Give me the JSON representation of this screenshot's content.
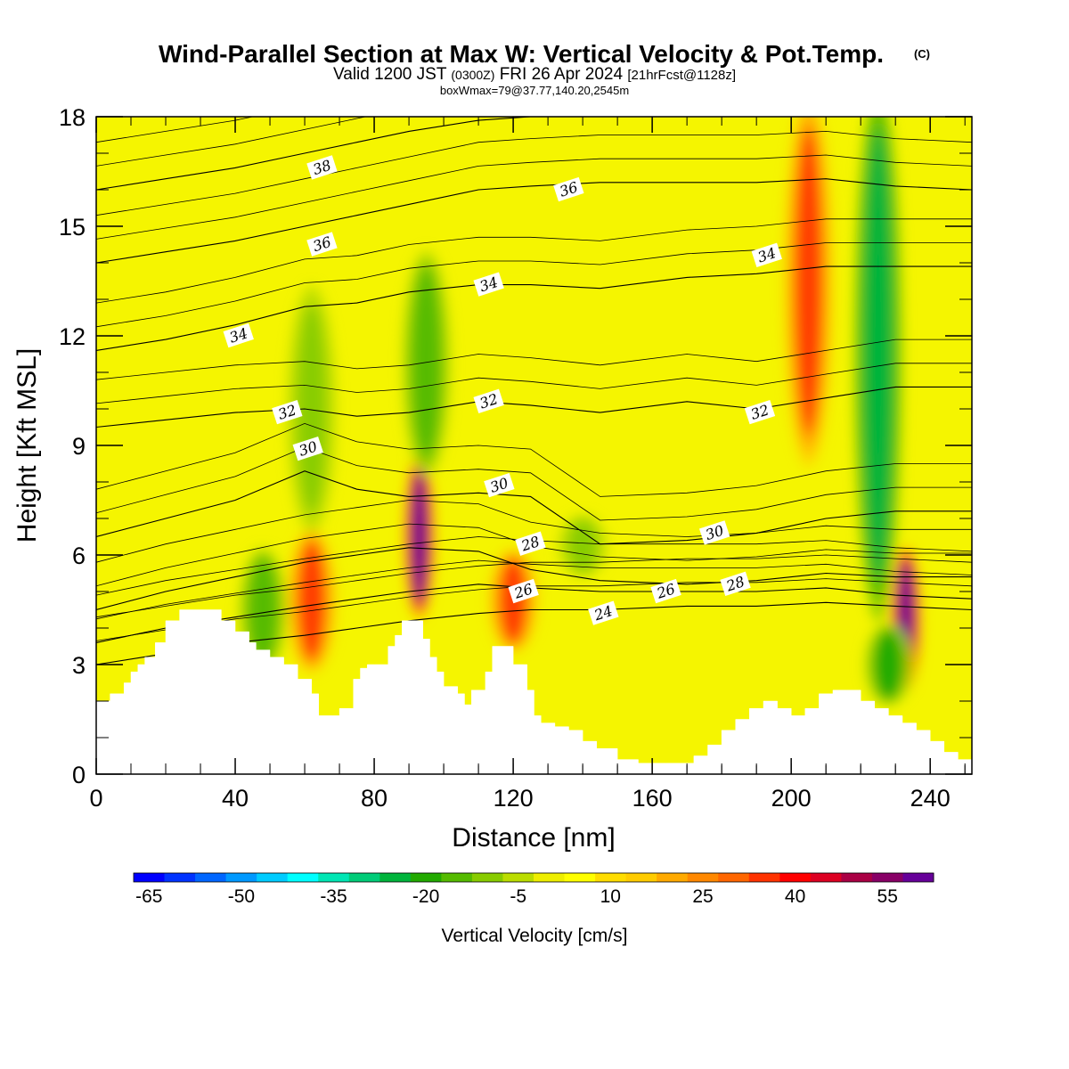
{
  "header": {
    "title": "Wind-Parallel Section at Max W: Vertical Velocity & Pot.Temp.",
    "copyright": "(C)",
    "valid_prefix": "Valid 1200 JST",
    "valid_utc": "(0300Z)",
    "valid_date": "FRI 26 Apr 2024",
    "forecast": "[21hrFcst@1128z]",
    "box_info": "boxWmax=79@37.77,140.20,2545m"
  },
  "colors": {
    "plot_background": "#f5f500",
    "terrain": "#ffffff",
    "contour_line": "#000000"
  },
  "chart_data": {
    "type": "heatmap",
    "xlabel": "Distance [nm]",
    "ylabel": "Height [Kft MSL]",
    "xlim": [
      0,
      252
    ],
    "ylim": [
      0,
      18
    ],
    "xticks": [
      0,
      40,
      80,
      120,
      160,
      200,
      240
    ],
    "yticks": [
      0,
      3,
      6,
      9,
      12,
      15,
      18
    ],
    "grid": false,
    "colorbar": {
      "title": "Vertical Velocity [cm/s]",
      "tick_values": [
        -65,
        -50,
        -35,
        -20,
        -5,
        10,
        25,
        40,
        55
      ],
      "colors": [
        "#0000ff",
        "#0033ff",
        "#0066ff",
        "#0099ff",
        "#00ccff",
        "#00ffff",
        "#00e6b4",
        "#00cc78",
        "#00b43c",
        "#22aa00",
        "#55bb00",
        "#88cc00",
        "#bbdd00",
        "#eeee00",
        "#ffff00",
        "#ffdd00",
        "#ffcc00",
        "#ffaa00",
        "#ff8800",
        "#ff6600",
        "#ff3300",
        "#ff0000",
        "#dd0022",
        "#aa0044",
        "#880066",
        "#660099"
      ]
    },
    "velocity_features": [
      {
        "x": 93,
        "z_bottom": 4.5,
        "z_top": 8.5,
        "peak": 55
      },
      {
        "x": 233,
        "z_bottom": 2.5,
        "z_top": 6.0,
        "peak": 55
      },
      {
        "x": 205,
        "z_bottom": 9.0,
        "z_top": 18.0,
        "peak": 30
      },
      {
        "x": 62,
        "z_bottom": 3.0,
        "z_top": 6.5,
        "peak": 30
      },
      {
        "x": 120,
        "z_bottom": 3.5,
        "z_top": 6.0,
        "peak": 30
      },
      {
        "x": 225,
        "z_bottom": 5.0,
        "z_top": 18.0,
        "peak": -30
      },
      {
        "x": 95,
        "z_bottom": 8.5,
        "z_top": 14.0,
        "peak": -20
      },
      {
        "x": 62,
        "z_bottom": 7.0,
        "z_top": 13.0,
        "peak": -15
      },
      {
        "x": 140,
        "z_bottom": 5.5,
        "z_top": 7.0,
        "peak": -15
      },
      {
        "x": 48,
        "z_bottom": 3.0,
        "z_top": 6.0,
        "peak": -20
      },
      {
        "x": 228,
        "z_bottom": 2.0,
        "z_top": 4.0,
        "peak": -25
      }
    ],
    "terrain_profile": {
      "x": [
        0,
        4,
        8,
        10,
        12,
        14,
        17,
        20,
        24,
        28,
        32,
        36,
        40,
        44,
        46,
        50,
        54,
        58,
        62,
        64,
        66,
        68,
        70,
        74,
        76,
        78,
        80,
        84,
        86,
        88,
        90,
        92,
        94,
        96,
        98,
        100,
        104,
        106,
        108,
        112,
        114,
        116,
        120,
        124,
        126,
        128,
        132,
        136,
        140,
        144,
        150,
        156,
        160,
        164,
        168,
        172,
        176,
        180,
        184,
        188,
        192,
        196,
        200,
        204,
        208,
        212,
        216,
        220,
        224,
        228,
        232,
        236,
        240,
        244,
        248,
        252
      ],
      "height_kft": [
        2.0,
        2.2,
        2.5,
        2.8,
        3.0,
        3.2,
        3.6,
        4.2,
        4.5,
        4.5,
        4.5,
        4.2,
        3.9,
        3.6,
        3.4,
        3.2,
        3.0,
        2.6,
        2.2,
        1.6,
        1.6,
        1.6,
        1.8,
        2.6,
        2.9,
        3.0,
        3.0,
        3.5,
        3.8,
        4.2,
        4.2,
        4.2,
        3.7,
        3.2,
        2.8,
        2.4,
        2.2,
        1.9,
        2.3,
        2.8,
        3.5,
        3.5,
        3.0,
        2.3,
        1.6,
        1.4,
        1.3,
        1.2,
        0.9,
        0.7,
        0.4,
        0.3,
        0.3,
        0.3,
        0.3,
        0.5,
        0.8,
        1.2,
        1.5,
        1.8,
        2.0,
        1.8,
        1.6,
        1.8,
        2.2,
        2.3,
        2.3,
        2.0,
        1.8,
        1.6,
        1.4,
        1.2,
        0.9,
        0.6,
        0.4,
        0.3
      ]
    },
    "potential_temperature": {
      "unit_note": "",
      "contours": [
        {
          "theta": 24,
          "heights_kft": [
            3.0,
            3.3,
            3.6,
            3.8,
            4.0,
            4.2,
            4.4,
            4.5,
            4.5,
            4.6,
            4.6,
            4.7,
            4.6,
            4.5
          ]
        },
        {
          "theta": 26,
          "heights_kft": [
            3.6,
            4.0,
            4.3,
            4.6,
            4.8,
            5.0,
            5.2,
            5.1,
            5.0,
            5.0,
            5.0,
            5.1,
            4.9,
            4.8
          ]
        },
        {
          "theta": 28,
          "heights_kft": [
            4.5,
            5.0,
            5.4,
            5.8,
            6.0,
            6.2,
            6.1,
            5.6,
            5.3,
            5.2,
            5.3,
            5.5,
            5.4,
            5.4
          ]
        },
        {
          "theta": 30,
          "heights_kft": [
            6.5,
            7.0,
            7.5,
            8.3,
            7.8,
            7.6,
            7.7,
            7.6,
            6.3,
            6.4,
            6.6,
            7.0,
            7.2,
            7.2
          ]
        },
        {
          "theta": 32,
          "heights_kft": [
            9.5,
            9.7,
            9.9,
            10.0,
            9.8,
            9.9,
            10.2,
            10.1,
            9.9,
            10.2,
            10.0,
            10.3,
            10.6,
            10.6
          ]
        },
        {
          "theta": 34,
          "heights_kft": [
            11.6,
            11.9,
            12.3,
            12.8,
            12.9,
            13.2,
            13.4,
            13.4,
            13.3,
            13.6,
            13.7,
            13.9,
            13.9,
            13.9
          ]
        },
        {
          "theta": 36,
          "heights_kft": [
            14.0,
            14.3,
            14.6,
            15.0,
            15.3,
            15.6,
            16.0,
            16.1,
            16.2,
            16.2,
            16.2,
            16.3,
            16.1,
            16.0
          ]
        },
        {
          "theta": 38,
          "heights_kft": [
            16.0,
            16.3,
            16.6,
            17.0,
            17.3,
            17.6,
            17.9,
            18.0,
            18.0,
            18.0,
            18.0,
            18.0,
            18.0,
            18.0
          ]
        }
      ],
      "contour_x": [
        0,
        20,
        40,
        60,
        75,
        90,
        110,
        125,
        145,
        170,
        190,
        210,
        230,
        252
      ],
      "labels": [
        {
          "text": "38",
          "x": 65,
          "z": 16.6
        },
        {
          "text": "36",
          "x": 136,
          "z": 16.0
        },
        {
          "text": "36",
          "x": 65,
          "z": 14.5
        },
        {
          "text": "34",
          "x": 41,
          "z": 12.0
        },
        {
          "text": "34",
          "x": 113,
          "z": 13.4
        },
        {
          "text": "34",
          "x": 193,
          "z": 14.2
        },
        {
          "text": "32",
          "x": 55,
          "z": 9.9
        },
        {
          "text": "32",
          "x": 113,
          "z": 10.2
        },
        {
          "text": "32",
          "x": 191,
          "z": 9.9
        },
        {
          "text": "30",
          "x": 61,
          "z": 8.9
        },
        {
          "text": "30",
          "x": 116,
          "z": 7.9
        },
        {
          "text": "30",
          "x": 178,
          "z": 6.6
        },
        {
          "text": "28",
          "x": 125,
          "z": 6.3
        },
        {
          "text": "28",
          "x": 184,
          "z": 5.2
        },
        {
          "text": "26",
          "x": 123,
          "z": 5.0
        },
        {
          "text": "26",
          "x": 164,
          "z": 5.0
        },
        {
          "text": "24",
          "x": 146,
          "z": 4.4
        }
      ]
    }
  }
}
